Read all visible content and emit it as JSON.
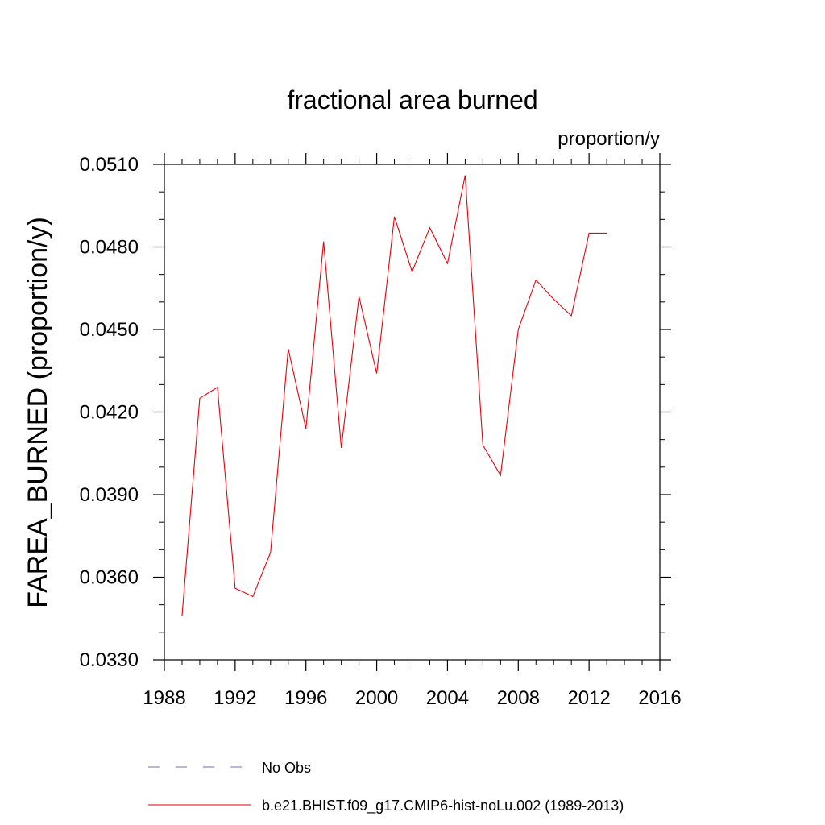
{
  "chart_data": {
    "type": "line",
    "title": "fractional area burned",
    "units": "proportion/y",
    "ylabel": "FAREA_BURNED  (proportion/y)",
    "xlabel": "",
    "xlim": [
      1988,
      2016
    ],
    "ylim": [
      0.033,
      0.051
    ],
    "xticks": [
      "1988",
      "1992",
      "1996",
      "2000",
      "2004",
      "2008",
      "2012",
      "2016"
    ],
    "yticks": [
      "0.0330",
      "0.0360",
      "0.0390",
      "0.0420",
      "0.0450",
      "0.0480",
      "0.0510"
    ],
    "grid": false,
    "legend_position": "bottom",
    "series": [
      {
        "name": "No Obs",
        "color": "#7b68c8",
        "dash": true,
        "x": [],
        "values": []
      },
      {
        "name": "b.e21.BHIST.f09_g17.CMIP6-hist-noLu.002 (1989-2013)",
        "color": "#e8000b",
        "dash": false,
        "x": [
          1989,
          1990,
          1991,
          1992,
          1993,
          1994,
          1995,
          1996,
          1997,
          1998,
          1999,
          2000,
          2001,
          2002,
          2003,
          2004,
          2005,
          2006,
          2007,
          2008,
          2009,
          2010,
          2011,
          2012,
          2013
        ],
        "values": [
          0.0346,
          0.0425,
          0.0429,
          0.0356,
          0.0353,
          0.0369,
          0.0443,
          0.0414,
          0.0482,
          0.0407,
          0.0462,
          0.0434,
          0.0491,
          0.0471,
          0.0487,
          0.0474,
          0.0506,
          0.0408,
          0.0397,
          0.045,
          0.0468,
          0.0461,
          0.0455,
          0.0485,
          0.0485
        ]
      }
    ]
  }
}
